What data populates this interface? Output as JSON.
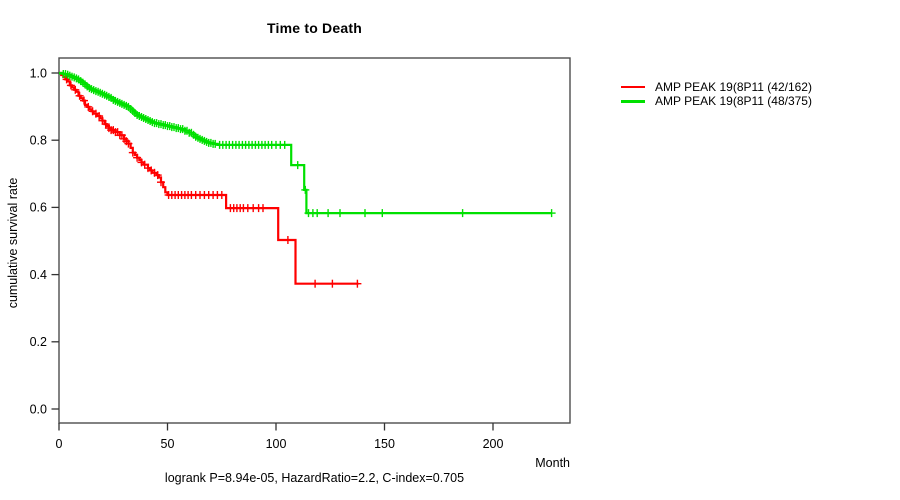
{
  "title": "Time to Death",
  "axes": {
    "x_label": "Month",
    "y_label": "cumulative survival rate",
    "x_ticks": [
      "0",
      "50",
      "100",
      "150",
      "200"
    ],
    "y_ticks": [
      "0.0",
      "0.2",
      "0.4",
      "0.6",
      "0.8",
      "1.0"
    ]
  },
  "legend": [
    {
      "label": "AMP PEAK 19(8P11 (42/162)",
      "color": "#ff0000"
    },
    {
      "label": "AMP PEAK 19(8P11 (48/375)",
      "color": "#00e000"
    }
  ],
  "footnote": "logrank P=8.94e-05, HazardRatio=2.2, C-index=0.705",
  "chart_data": {
    "type": "line",
    "subtype": "kaplan-meier-step",
    "title": "Time to Death",
    "xlabel": "Month",
    "ylabel": "cumulative survival rate",
    "xlim": [
      0,
      235
    ],
    "ylim": [
      -0.04,
      1.04
    ],
    "grid": false,
    "legend_position": "outside-top-right",
    "statistics": {
      "logrank_p": "8.94e-05",
      "hazard_ratio": "2.2",
      "c_index": "0.705"
    },
    "series": [
      {
        "id": "red",
        "name": "AMP PEAK 19(8P11 (42/162)",
        "events": 42,
        "n": 162,
        "color": "#ff0000",
        "end_month": 138,
        "steps": [
          [
            0,
            1.0
          ],
          [
            1,
            0.994
          ],
          [
            2,
            0.988
          ],
          [
            3,
            0.981
          ],
          [
            4,
            0.975
          ],
          [
            5,
            0.963
          ],
          [
            6,
            0.957
          ],
          [
            7,
            0.95
          ],
          [
            8,
            0.944
          ],
          [
            9,
            0.932
          ],
          [
            10,
            0.925
          ],
          [
            11,
            0.918
          ],
          [
            12,
            0.905
          ],
          [
            13,
            0.899
          ],
          [
            14,
            0.892
          ],
          [
            15,
            0.886
          ],
          [
            16,
            0.879
          ],
          [
            17.5,
            0.872
          ],
          [
            19,
            0.865
          ],
          [
            20,
            0.858
          ],
          [
            21,
            0.848
          ],
          [
            22,
            0.842
          ],
          [
            23,
            0.836
          ],
          [
            24,
            0.83
          ],
          [
            26,
            0.824
          ],
          [
            28,
            0.815
          ],
          [
            30,
            0.804
          ],
          [
            31,
            0.797
          ],
          [
            32,
            0.79
          ],
          [
            33,
            0.777
          ],
          [
            34,
            0.763
          ],
          [
            35,
            0.756
          ],
          [
            36,
            0.748
          ],
          [
            37,
            0.741
          ],
          [
            38,
            0.734
          ],
          [
            39,
            0.727
          ],
          [
            41,
            0.717
          ],
          [
            42,
            0.71
          ],
          [
            43,
            0.703
          ],
          [
            45,
            0.696
          ],
          [
            46,
            0.689
          ],
          [
            47,
            0.675
          ],
          [
            48,
            0.66
          ],
          [
            49,
            0.645
          ],
          [
            50,
            0.637
          ],
          [
            77,
            0.598
          ],
          [
            101,
            0.503
          ],
          [
            109,
            0.373
          ]
        ],
        "censor_months": [
          3.5,
          5.5,
          7.5,
          9.5,
          11.5,
          13.5,
          15.5,
          17,
          18.5,
          20,
          21.5,
          23,
          24,
          25,
          26,
          27,
          28,
          29,
          30,
          31,
          32,
          34,
          36,
          38,
          39.5,
          41,
          42.5,
          44,
          45.5,
          47,
          50.5,
          52,
          53.5,
          55,
          56.5,
          58,
          59.5,
          61,
          63,
          65,
          67,
          69,
          71,
          73,
          75,
          79,
          80.5,
          82,
          83.5,
          85,
          87,
          89.5,
          92,
          94,
          105.5,
          118,
          126,
          137.5
        ]
      },
      {
        "id": "green",
        "name": "AMP PEAK 19(8P11 (48/375)",
        "events": 48,
        "n": 375,
        "color": "#00e000",
        "end_month": 227,
        "steps": [
          [
            0,
            1.0
          ],
          [
            2,
            0.997
          ],
          [
            4,
            0.995
          ],
          [
            5,
            0.992
          ],
          [
            6,
            0.989
          ],
          [
            7,
            0.987
          ],
          [
            8,
            0.984
          ],
          [
            9,
            0.981
          ],
          [
            10,
            0.976
          ],
          [
            11,
            0.971
          ],
          [
            12,
            0.966
          ],
          [
            13,
            0.96
          ],
          [
            14,
            0.955
          ],
          [
            15,
            0.952
          ],
          [
            16,
            0.949
          ],
          [
            17,
            0.946
          ],
          [
            18,
            0.944
          ],
          [
            19,
            0.941
          ],
          [
            20,
            0.938
          ],
          [
            21,
            0.935
          ],
          [
            22,
            0.932
          ],
          [
            23,
            0.929
          ],
          [
            24,
            0.926
          ],
          [
            25,
            0.92
          ],
          [
            26,
            0.917
          ],
          [
            27,
            0.914
          ],
          [
            28,
            0.911
          ],
          [
            29,
            0.908
          ],
          [
            30,
            0.905
          ],
          [
            31,
            0.902
          ],
          [
            32,
            0.899
          ],
          [
            33,
            0.893
          ],
          [
            34,
            0.887
          ],
          [
            35,
            0.881
          ],
          [
            36,
            0.875
          ],
          [
            37,
            0.872
          ],
          [
            38,
            0.869
          ],
          [
            39,
            0.866
          ],
          [
            40,
            0.863
          ],
          [
            41,
            0.86
          ],
          [
            42,
            0.857
          ],
          [
            43,
            0.854
          ],
          [
            44,
            0.851
          ],
          [
            46,
            0.848
          ],
          [
            48,
            0.845
          ],
          [
            50,
            0.842
          ],
          [
            52,
            0.839
          ],
          [
            54,
            0.836
          ],
          [
            56,
            0.833
          ],
          [
            58,
            0.828
          ],
          [
            60,
            0.822
          ],
          [
            62,
            0.816
          ],
          [
            63,
            0.81
          ],
          [
            64,
            0.807
          ],
          [
            65,
            0.804
          ],
          [
            66,
            0.801
          ],
          [
            67,
            0.798
          ],
          [
            68,
            0.795
          ],
          [
            69,
            0.792
          ],
          [
            71,
            0.789
          ],
          [
            73,
            0.786
          ],
          [
            107,
            0.726
          ],
          [
            113,
            0.652
          ],
          [
            114,
            0.583
          ]
        ],
        "censor_months": [
          2,
          3,
          4,
          5,
          6,
          7,
          8,
          9,
          10,
          11,
          12,
          13,
          14,
          15,
          16,
          17,
          18,
          19,
          20,
          21,
          22,
          23,
          24,
          25,
          26,
          27,
          28,
          29,
          30,
          31,
          32,
          33,
          34,
          35,
          36,
          37,
          38,
          39,
          40,
          41,
          42,
          43,
          44,
          45,
          46,
          47,
          48,
          49,
          50,
          51,
          52,
          53,
          54,
          55,
          56,
          57,
          58,
          59,
          60,
          61,
          62,
          63,
          64,
          65,
          66,
          67,
          68,
          69,
          70,
          71,
          72,
          74,
          75.5,
          77,
          78.5,
          80,
          81.5,
          83,
          84.5,
          86,
          87.5,
          89,
          90.5,
          92,
          93.5,
          95,
          96.5,
          98,
          100,
          102,
          104,
          110,
          113.5,
          115,
          117,
          119,
          124,
          129.5,
          141,
          149,
          186,
          227
        ]
      }
    ]
  }
}
